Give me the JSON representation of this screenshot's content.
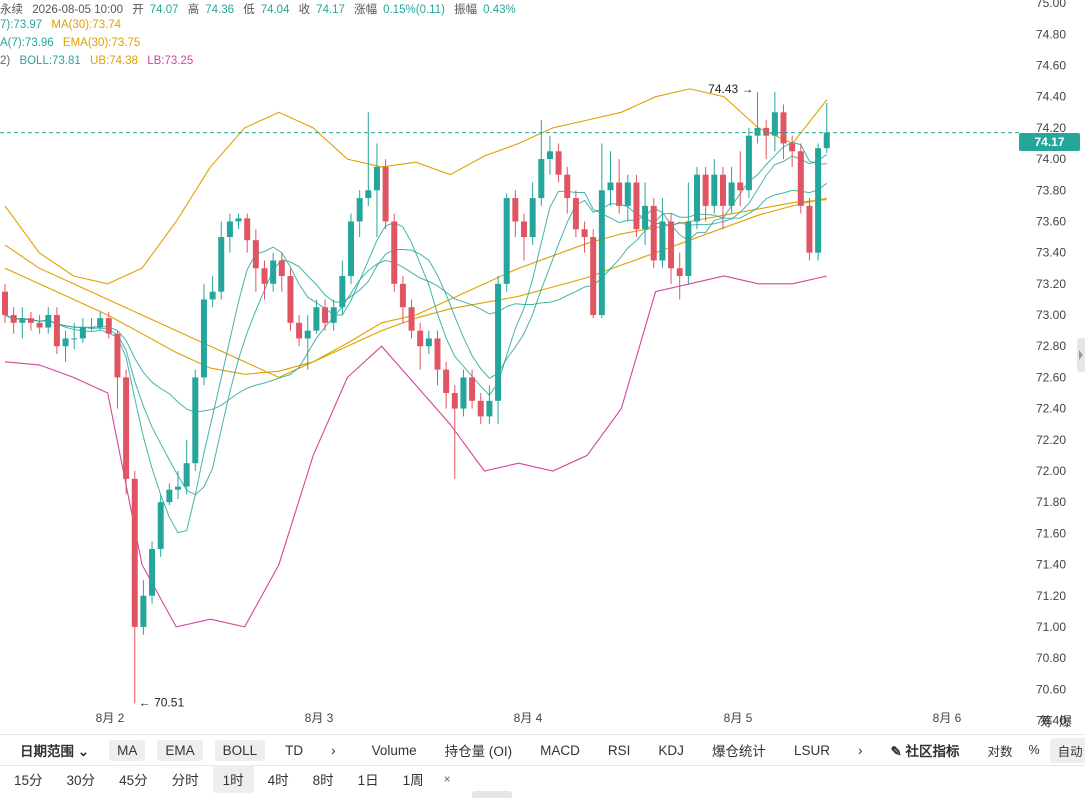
{
  "info": {
    "prefix": "永续",
    "datetime": "2026-08-05 10:00",
    "open_label": "开",
    "open": "74.07",
    "high_label": "高",
    "high": "74.36",
    "low_label": "低",
    "low": "74.04",
    "close_label": "收",
    "close": "74.17",
    "change_label": "涨幅",
    "change": "0.15%(0.11)",
    "amp_label": "振幅",
    "amp": "0.43%",
    "ma7": "7):73.97",
    "ma30": "MA(30):73.74",
    "ema7": "A(7):73.96",
    "ema30": "EMA(30):73.75",
    "boll_prefix": "2)",
    "boll": "BOLL:73.81",
    "ub": "UB:74.38",
    "lb": "LB:73.25"
  },
  "current_price": "74.17",
  "max_label": "74.43 →",
  "min_label": "← 70.51",
  "indicator_bar": {
    "range_label": "日期范围",
    "ma": "MA",
    "ema": "EMA",
    "boll": "BOLL",
    "td": "TD",
    "more1": "›",
    "volume": "Volume",
    "oi": "持仓量 (OI)",
    "macd": "MACD",
    "rsi": "RSI",
    "kdj": "KDJ",
    "liq": "爆仓统计",
    "lsur": "LSUR",
    "more2": "›",
    "community": "社区指标",
    "log": "对数",
    "pct": "%",
    "auto": "自动"
  },
  "timeframes": [
    "15分",
    "30分",
    "45分",
    "分时",
    "1时",
    "4时",
    "8时",
    "1日",
    "1周"
  ],
  "active_timeframe": "1时",
  "close_symbol": "×",
  "corner": [
    "筹",
    "爆"
  ],
  "colors": {
    "up": "#26a69a",
    "down": "#e05563",
    "ma": "#26a69a",
    "ema": "#e0a000",
    "boll_lb": "#d6449a"
  },
  "chart_data": {
    "type": "candlestick",
    "y_ticks": [
      "75.00",
      "74.80",
      "74.60",
      "74.40",
      "74.20",
      "74.00",
      "73.80",
      "73.60",
      "73.40",
      "73.20",
      "73.00",
      "72.80",
      "72.60",
      "72.40",
      "72.20",
      "72.00",
      "71.80",
      "71.60",
      "71.40",
      "71.20",
      "71.00",
      "70.80",
      "70.60",
      "70.40"
    ],
    "ylim": [
      70.32,
      75.02
    ],
    "x_labels": [
      "8月 2",
      "8月 3",
      "8月 4",
      "8月 5",
      "8月 6"
    ],
    "candles": [
      [
        73.15,
        73.0,
        73.2,
        72.95
      ],
      [
        73.0,
        72.95,
        73.05,
        72.88
      ],
      [
        72.95,
        72.98,
        73.05,
        72.85
      ],
      [
        72.98,
        72.95,
        73.02,
        72.9
      ],
      [
        72.95,
        72.92,
        73.0,
        72.88
      ],
      [
        72.92,
        73.0,
        73.05,
        72.88
      ],
      [
        73.0,
        72.8,
        73.05,
        72.75
      ],
      [
        72.8,
        72.85,
        72.9,
        72.7
      ],
      [
        72.85,
        72.85,
        72.95,
        72.78
      ],
      [
        72.85,
        72.92,
        72.98,
        72.82
      ],
      [
        72.92,
        72.92,
        72.98,
        72.9
      ],
      [
        72.92,
        72.98,
        73.02,
        72.9
      ],
      [
        72.98,
        72.88,
        73.02,
        72.85
      ],
      [
        72.88,
        72.6,
        72.9,
        72.4
      ],
      [
        72.6,
        71.95,
        72.65,
        71.85
      ],
      [
        71.95,
        71.0,
        72.0,
        70.51
      ],
      [
        71.0,
        71.2,
        71.3,
        70.95
      ],
      [
        71.2,
        71.5,
        71.55,
        71.15
      ],
      [
        71.5,
        71.8,
        71.85,
        71.45
      ],
      [
        71.8,
        71.88,
        71.92,
        71.78
      ],
      [
        71.88,
        71.9,
        72.0,
        71.82
      ],
      [
        71.9,
        72.05,
        72.2,
        71.85
      ],
      [
        72.05,
        72.6,
        72.65,
        72.0
      ],
      [
        72.6,
        73.1,
        73.2,
        72.55
      ],
      [
        73.1,
        73.15,
        73.25,
        73.05
      ],
      [
        73.15,
        73.5,
        73.6,
        73.1
      ],
      [
        73.5,
        73.6,
        73.65,
        73.4
      ],
      [
        73.6,
        73.62,
        73.65,
        73.55
      ],
      [
        73.62,
        73.48,
        73.65,
        73.4
      ],
      [
        73.48,
        73.3,
        73.55,
        73.15
      ],
      [
        73.3,
        73.2,
        73.35,
        73.1
      ],
      [
        73.2,
        73.35,
        73.4,
        73.15
      ],
      [
        73.35,
        73.25,
        73.4,
        73.15
      ],
      [
        73.25,
        72.95,
        73.3,
        72.9
      ],
      [
        72.95,
        72.85,
        73.0,
        72.8
      ],
      [
        72.85,
        72.9,
        73.0,
        72.65
      ],
      [
        72.9,
        73.05,
        73.1,
        72.88
      ],
      [
        73.05,
        72.95,
        73.1,
        72.9
      ],
      [
        72.95,
        73.05,
        73.1,
        72.9
      ],
      [
        73.05,
        73.25,
        73.35,
        73.0
      ],
      [
        73.25,
        73.6,
        73.65,
        73.2
      ],
      [
        73.6,
        73.75,
        73.8,
        73.5
      ],
      [
        73.75,
        73.8,
        74.3,
        73.7
      ],
      [
        73.8,
        73.95,
        74.1,
        73.5
      ],
      [
        73.95,
        73.6,
        74.0,
        73.55
      ],
      [
        73.6,
        73.2,
        73.65,
        73.15
      ],
      [
        73.2,
        73.05,
        73.25,
        72.95
      ],
      [
        73.05,
        72.9,
        73.1,
        72.85
      ],
      [
        72.9,
        72.8,
        72.95,
        72.65
      ],
      [
        72.8,
        72.85,
        72.9,
        72.75
      ],
      [
        72.85,
        72.65,
        72.9,
        72.55
      ],
      [
        72.65,
        72.5,
        72.7,
        72.4
      ],
      [
        72.5,
        72.4,
        72.55,
        71.95
      ],
      [
        72.4,
        72.6,
        72.65,
        72.35
      ],
      [
        72.6,
        72.45,
        72.65,
        72.4
      ],
      [
        72.45,
        72.35,
        72.5,
        72.3
      ],
      [
        72.35,
        72.45,
        72.55,
        72.3
      ],
      [
        72.45,
        73.2,
        73.25,
        72.3
      ],
      [
        73.2,
        73.75,
        73.78,
        73.15
      ],
      [
        73.75,
        73.6,
        73.8,
        73.5
      ],
      [
        73.6,
        73.5,
        73.65,
        73.35
      ],
      [
        73.5,
        73.75,
        73.85,
        73.45
      ],
      [
        73.75,
        74.0,
        74.25,
        73.7
      ],
      [
        74.0,
        74.05,
        74.15,
        73.9
      ],
      [
        74.05,
        73.9,
        74.1,
        73.85
      ],
      [
        73.9,
        73.75,
        73.95,
        73.65
      ],
      [
        73.75,
        73.55,
        73.8,
        73.5
      ],
      [
        73.55,
        73.5,
        73.6,
        73.4
      ],
      [
        73.5,
        73.0,
        73.55,
        72.98
      ],
      [
        73.0,
        73.8,
        74.1,
        72.98
      ],
      [
        73.8,
        73.85,
        74.05,
        73.7
      ],
      [
        73.85,
        73.7,
        74.0,
        73.65
      ],
      [
        73.7,
        73.85,
        73.9,
        73.6
      ],
      [
        73.85,
        73.55,
        73.9,
        73.5
      ],
      [
        73.55,
        73.7,
        73.85,
        73.45
      ],
      [
        73.7,
        73.35,
        73.75,
        73.3
      ],
      [
        73.35,
        73.6,
        73.75,
        73.3
      ],
      [
        73.6,
        73.3,
        73.65,
        73.2
      ],
      [
        73.3,
        73.25,
        73.4,
        73.1
      ],
      [
        73.25,
        73.6,
        73.85,
        73.2
      ],
      [
        73.6,
        73.9,
        73.95,
        73.55
      ],
      [
        73.9,
        73.7,
        73.95,
        73.6
      ],
      [
        73.7,
        73.9,
        74.0,
        73.65
      ],
      [
        73.9,
        73.7,
        73.95,
        73.55
      ],
      [
        73.7,
        73.85,
        73.95,
        73.65
      ],
      [
        73.85,
        73.8,
        74.05,
        73.7
      ],
      [
        73.8,
        74.15,
        74.2,
        73.75
      ],
      [
        74.15,
        74.2,
        74.43,
        74.1
      ],
      [
        74.2,
        74.15,
        74.25,
        74.0
      ],
      [
        74.15,
        74.3,
        74.43,
        74.05
      ],
      [
        74.3,
        74.1,
        74.35,
        74.0
      ],
      [
        74.1,
        74.05,
        74.15,
        73.95
      ],
      [
        74.05,
        73.7,
        74.1,
        73.65
      ],
      [
        73.7,
        73.4,
        73.75,
        73.35
      ],
      [
        73.4,
        74.07,
        74.1,
        73.35
      ],
      [
        74.07,
        74.17,
        74.36,
        74.04
      ]
    ],
    "series": [
      {
        "name": "MA(30)",
        "values": [
          73.45,
          73.3,
          73.2,
          73.1,
          73.0,
          72.9,
          72.8,
          72.7,
          72.6,
          72.7,
          72.82,
          72.95,
          73.0,
          73.1,
          73.2,
          73.3,
          73.38,
          73.46,
          73.52,
          73.56,
          73.6,
          73.64,
          73.68,
          73.72,
          73.74
        ]
      },
      {
        "name": "EMA(30)",
        "values": [
          73.3,
          73.2,
          73.1,
          73.0,
          72.88,
          72.76,
          72.66,
          72.62,
          72.64,
          72.7,
          72.8,
          72.9,
          72.98,
          73.04,
          73.08,
          73.12,
          73.18,
          73.24,
          73.32,
          73.4,
          73.48,
          73.56,
          73.64,
          73.7,
          73.75
        ]
      },
      {
        "name": "UB",
        "values": [
          73.7,
          73.4,
          73.25,
          73.2,
          73.3,
          73.6,
          73.95,
          74.2,
          74.3,
          74.2,
          74.0,
          73.95,
          73.98,
          73.9,
          74.02,
          74.1,
          74.2,
          74.25,
          74.3,
          74.4,
          74.45,
          74.4,
          74.2,
          74.1,
          74.38
        ]
      },
      {
        "name": "LB",
        "values": [
          72.7,
          72.68,
          72.6,
          72.5,
          71.4,
          71.0,
          71.05,
          71.0,
          71.4,
          72.1,
          72.6,
          72.8,
          72.55,
          72.3,
          72.0,
          72.05,
          72.0,
          72.1,
          72.4,
          73.15,
          73.2,
          73.25,
          73.2,
          73.2,
          73.25
        ]
      }
    ]
  }
}
